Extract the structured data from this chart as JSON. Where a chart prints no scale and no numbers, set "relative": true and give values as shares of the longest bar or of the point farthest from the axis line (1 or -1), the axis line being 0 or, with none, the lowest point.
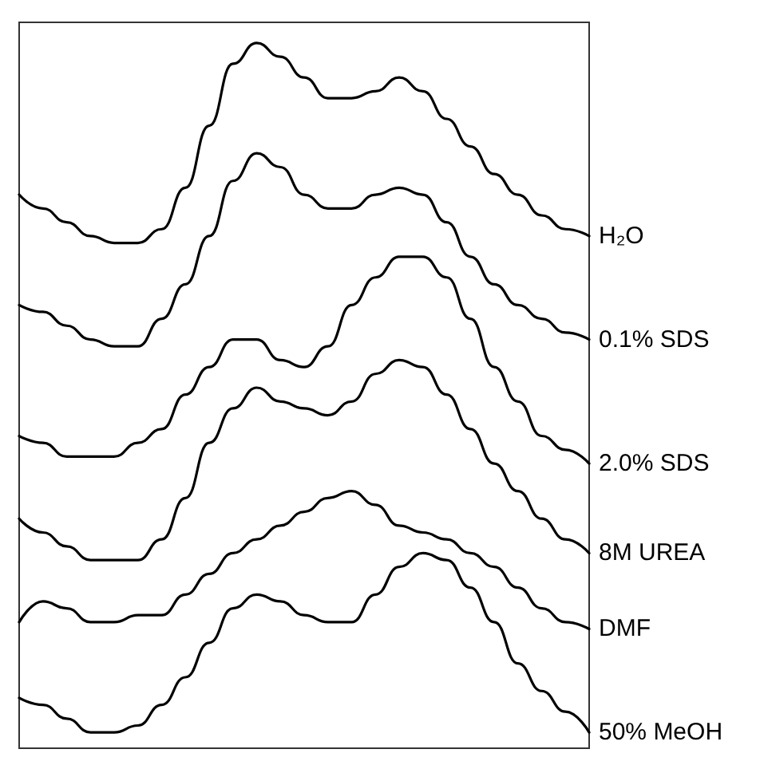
{
  "chart_data": {
    "type": "line",
    "relative": true,
    "grid": false,
    "legend": false,
    "marker": "none",
    "categories": [
      null,
      null,
      null,
      null,
      null,
      null,
      null,
      null,
      null,
      null,
      null,
      null,
      null,
      null,
      null,
      null,
      null,
      null,
      null,
      null,
      null,
      null,
      null,
      null,
      null
    ],
    "series": [
      {
        "name": "H₂O",
        "color": "#000000",
        "values": [
          0.78,
          0.76,
          0.74,
          0.72,
          0.71,
          0.71,
          0.73,
          0.79,
          0.88,
          0.97,
          1.0,
          0.98,
          0.95,
          0.92,
          0.92,
          0.93,
          0.95,
          0.93,
          0.89,
          0.85,
          0.81,
          0.78,
          0.75,
          0.73,
          0.72
        ]
      },
      {
        "name": "0.1% SDS",
        "color": "#000000",
        "values": [
          0.62,
          0.61,
          0.59,
          0.57,
          0.56,
          0.56,
          0.6,
          0.65,
          0.72,
          0.8,
          0.84,
          0.82,
          0.78,
          0.76,
          0.76,
          0.78,
          0.79,
          0.78,
          0.74,
          0.69,
          0.65,
          0.62,
          0.6,
          0.58,
          0.57
        ]
      },
      {
        "name": "2.0% SDS",
        "color": "#000000",
        "values": [
          0.43,
          0.42,
          0.4,
          0.4,
          0.4,
          0.42,
          0.44,
          0.49,
          0.53,
          0.57,
          0.57,
          0.54,
          0.53,
          0.56,
          0.62,
          0.66,
          0.69,
          0.69,
          0.66,
          0.6,
          0.53,
          0.48,
          0.43,
          0.41,
          0.39
        ]
      },
      {
        "name": "8M UREA",
        "color": "#000000",
        "values": [
          0.31,
          0.29,
          0.27,
          0.25,
          0.25,
          0.25,
          0.28,
          0.34,
          0.42,
          0.47,
          0.5,
          0.48,
          0.47,
          0.46,
          0.48,
          0.52,
          0.54,
          0.53,
          0.49,
          0.44,
          0.39,
          0.35,
          0.31,
          0.28,
          0.26
        ]
      },
      {
        "name": "DMF",
        "color": "#000000",
        "values": [
          0.16,
          0.19,
          0.18,
          0.16,
          0.16,
          0.17,
          0.17,
          0.2,
          0.23,
          0.26,
          0.28,
          0.3,
          0.32,
          0.34,
          0.35,
          0.33,
          0.3,
          0.29,
          0.28,
          0.26,
          0.24,
          0.21,
          0.18,
          0.16,
          0.15
        ]
      },
      {
        "name": "50% MeOH",
        "color": "#000000",
        "values": [
          0.05,
          0.04,
          0.02,
          0.0,
          0.0,
          0.01,
          0.04,
          0.08,
          0.13,
          0.18,
          0.2,
          0.19,
          0.17,
          0.16,
          0.16,
          0.2,
          0.24,
          0.26,
          0.25,
          0.21,
          0.16,
          0.1,
          0.06,
          0.03,
          0.0
        ]
      }
    ]
  }
}
